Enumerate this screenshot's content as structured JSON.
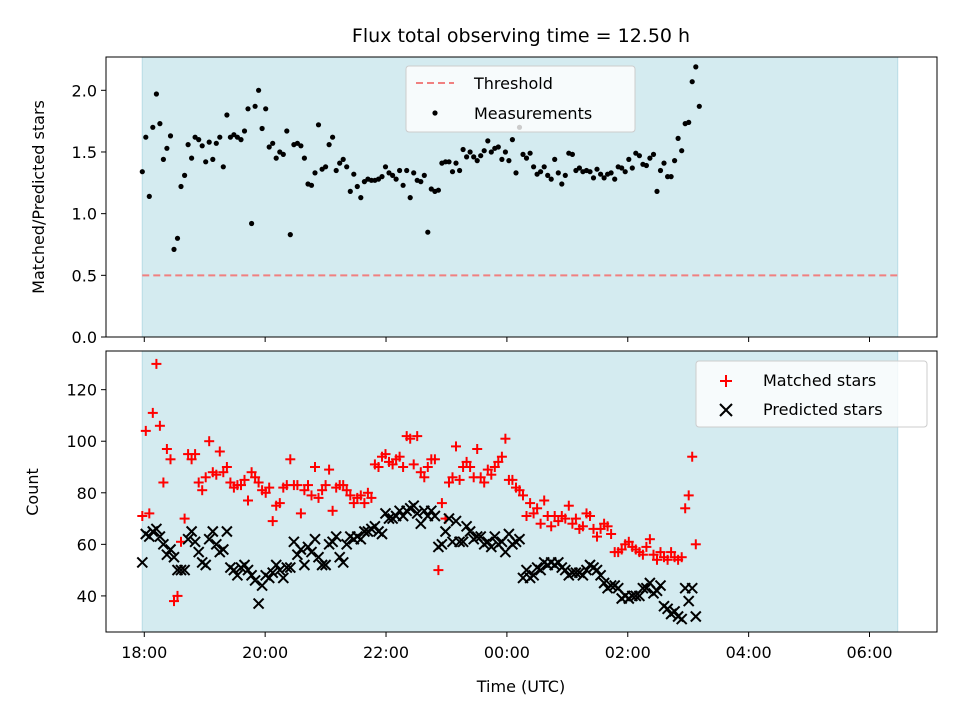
{
  "chart_data": [
    {
      "type": "scatter",
      "title": "Flux total observing time = 12.50 h",
      "xlabel": "",
      "ylabel": "Matched/Predicted stars",
      "xlim": [
        "17:22",
        "07:07"
      ],
      "ylim": [
        0,
        2.27
      ],
      "x_ticks": [
        "18:00",
        "20:00",
        "22:00",
        "00:00",
        "02:00",
        "04:00",
        "06:00"
      ],
      "y_ticks": [
        "0.0",
        "0.5",
        "1.0",
        "1.5",
        "2.0"
      ],
      "observing_window": [
        "17:58",
        "06:28"
      ],
      "threshold": 0.5,
      "legend": {
        "position": "upper center",
        "entries": [
          "Threshold",
          "Measurements"
        ]
      },
      "colors": {
        "observing_window": "#d4ebf0",
        "threshold": "#f08080",
        "measurements": "#000000"
      },
      "series": [
        {
          "name": "Measurements",
          "x_start": "17:58",
          "step_minutes": 3.5,
          "values": [
            1.34,
            1.62,
            1.14,
            1.7,
            1.97,
            1.73,
            1.44,
            1.53,
            1.63,
            0.71,
            0.8,
            1.22,
            1.31,
            1.56,
            1.45,
            1.62,
            1.6,
            1.55,
            1.42,
            1.58,
            1.44,
            1.57,
            1.62,
            1.38,
            1.8,
            1.62,
            1.64,
            1.62,
            1.6,
            1.67,
            1.85,
            0.92,
            1.87,
            2.0,
            1.69,
            1.85,
            1.54,
            1.57,
            1.45,
            1.5,
            1.48,
            1.67,
            0.83,
            1.56,
            1.57,
            1.55,
            1.45,
            1.24,
            1.23,
            1.33,
            1.72,
            1.36,
            1.38,
            1.56,
            1.62,
            1.35,
            1.41,
            1.44,
            1.38,
            1.18,
            1.32,
            1.22,
            1.13,
            1.26,
            1.28,
            1.27,
            1.27,
            1.28,
            1.3,
            1.38,
            1.33,
            1.31,
            1.28,
            1.35,
            1.23,
            1.35,
            1.13,
            1.33,
            1.27,
            1.26,
            1.31,
            0.85,
            1.2,
            1.18,
            1.19,
            1.41,
            1.42,
            1.42,
            1.34,
            1.41,
            1.35,
            1.52,
            1.46,
            1.5,
            1.46,
            1.43,
            1.47,
            1.51,
            1.59,
            1.5,
            1.53,
            1.54,
            1.44,
            1.5,
            1.43,
            1.6,
            1.33,
            1.7,
            1.48,
            1.45,
            1.49,
            1.38,
            1.32,
            1.34,
            1.38,
            1.31,
            1.28,
            1.44,
            1.33,
            1.24,
            1.31,
            1.49,
            1.48,
            1.35,
            1.37,
            1.34,
            1.35,
            1.34,
            1.29,
            1.36,
            1.32,
            1.29,
            1.32,
            1.33,
            1.28,
            1.38,
            1.37,
            1.34,
            1.44,
            1.37,
            1.49,
            1.47,
            1.4,
            1.39,
            1.45,
            1.48,
            1.18,
            1.35,
            1.41,
            1.3,
            1.3,
            1.43,
            1.61,
            1.51,
            1.73,
            1.74,
            2.07,
            2.19,
            1.87
          ]
        }
      ]
    },
    {
      "type": "scatter",
      "title": "",
      "xlabel": "Time (UTC)",
      "ylabel": "Count",
      "xlim": [
        "17:22",
        "07:07"
      ],
      "ylim": [
        26,
        135
      ],
      "x_ticks": [
        "18:00",
        "20:00",
        "22:00",
        "00:00",
        "02:00",
        "04:00",
        "06:00"
      ],
      "y_ticks": [
        "40",
        "60",
        "80",
        "100",
        "120"
      ],
      "observing_window": [
        "17:58",
        "06:28"
      ],
      "legend": {
        "position": "upper right",
        "entries": [
          "Matched stars",
          "Predicted stars"
        ]
      },
      "colors": {
        "observing_window": "#d4ebf0",
        "matched": "#ff0000",
        "predicted": "#000000"
      },
      "series": [
        {
          "name": "Matched stars",
          "marker": "plus",
          "x_start": "17:58",
          "step_minutes": 3.5,
          "values": [
            71,
            104,
            72,
            111,
            130,
            106,
            84,
            97,
            93,
            38,
            40,
            61,
            70,
            95,
            93,
            95,
            84,
            81,
            86,
            100,
            88,
            87,
            96,
            88,
            90,
            84,
            82,
            83,
            83,
            85,
            77,
            88,
            86,
            84,
            81,
            80,
            82,
            69,
            75,
            76,
            82,
            83,
            93,
            83,
            83,
            72,
            81,
            83,
            79,
            90,
            78,
            81,
            83,
            89,
            73,
            82,
            83,
            83,
            81,
            79,
            76,
            78,
            79,
            76,
            80,
            78,
            91,
            90,
            94,
            95,
            92,
            91,
            93,
            94,
            90,
            102,
            101,
            91,
            102,
            88,
            86,
            90,
            93,
            93,
            50,
            76,
            70,
            84,
            86,
            98,
            85,
            90,
            92,
            90,
            86,
            97,
            86,
            84,
            89,
            87,
            90,
            92,
            94,
            101,
            85,
            85,
            82,
            81,
            79,
            71,
            76,
            72,
            74,
            68,
            77,
            71,
            67,
            71,
            69,
            71,
            70,
            75,
            68,
            70,
            66,
            67,
            72,
            71,
            66,
            63,
            66,
            68,
            67,
            64,
            57,
            57,
            58,
            60,
            61,
            59,
            58,
            57,
            56,
            59,
            62,
            56,
            54,
            57,
            55,
            54,
            57,
            55,
            54,
            55,
            74,
            79,
            94,
            60
          ]
        },
        {
          "name": "Predicted stars",
          "marker": "x",
          "x_start": "17:58",
          "step_minutes": 3.5,
          "values": [
            53,
            64,
            63,
            65,
            66,
            63,
            60,
            56,
            58,
            55,
            50,
            50,
            50,
            62,
            65,
            61,
            57,
            53,
            52,
            62,
            65,
            60,
            57,
            58,
            65,
            51,
            50,
            48,
            51,
            52,
            50,
            48,
            46,
            37,
            44,
            48,
            47,
            49,
            52,
            50,
            47,
            51,
            51,
            61,
            56,
            58,
            52,
            59,
            57,
            62,
            55,
            52,
            52,
            60,
            61,
            63,
            55,
            53,
            60,
            63,
            62,
            63,
            62,
            65,
            65,
            66,
            67,
            65,
            64,
            72,
            70,
            70,
            71,
            73,
            71,
            73,
            74,
            75,
            72,
            68,
            73,
            71,
            73,
            71,
            59,
            60,
            65,
            70,
            61,
            69,
            61,
            61,
            67,
            65,
            62,
            63,
            63,
            60,
            61,
            59,
            63,
            60,
            61,
            57,
            64,
            60,
            61,
            62,
            47,
            50,
            47,
            48,
            51,
            50,
            53,
            52,
            53,
            52,
            53,
            51,
            50,
            48,
            49,
            49,
            49,
            48,
            50,
            52,
            51,
            50,
            48,
            45,
            43,
            44,
            44,
            43,
            39,
            40,
            39,
            40,
            40,
            40,
            43,
            43,
            45,
            41,
            42,
            44,
            36,
            35,
            33,
            34,
            32,
            31,
            43,
            38,
            43,
            32
          ]
        }
      ]
    }
  ]
}
